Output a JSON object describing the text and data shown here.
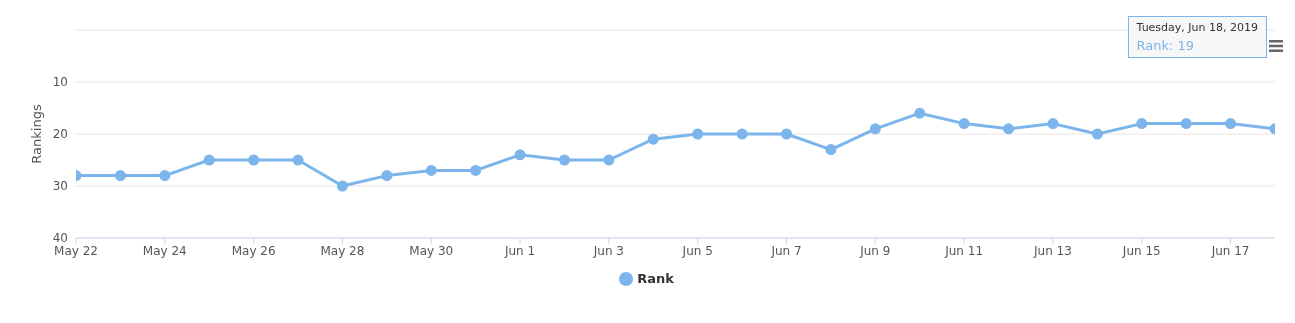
{
  "chart_data": {
    "type": "line",
    "ylabel": "Rankings",
    "x": [
      "2019-05-22",
      "2019-05-23",
      "2019-05-24",
      "2019-05-25",
      "2019-05-26",
      "2019-05-27",
      "2019-05-28",
      "2019-05-29",
      "2019-05-30",
      "2019-05-31",
      "2019-06-01",
      "2019-06-02",
      "2019-06-03",
      "2019-06-04",
      "2019-06-05",
      "2019-06-06",
      "2019-06-07",
      "2019-06-08",
      "2019-06-09",
      "2019-06-10",
      "2019-06-11",
      "2019-06-12",
      "2019-06-13",
      "2019-06-14",
      "2019-06-15",
      "2019-06-16",
      "2019-06-17",
      "2019-06-18"
    ],
    "series": [
      {
        "name": "Rank",
        "color": "#7cb5ec",
        "values": [
          28,
          28,
          28,
          25,
          25,
          25,
          30,
          28,
          27,
          27,
          24,
          25,
          25,
          21,
          20,
          20,
          20,
          23,
          19,
          16,
          18,
          19,
          18,
          20,
          18,
          18,
          18,
          19
        ]
      }
    ],
    "xlim": [
      "2019-05-22",
      "2019-06-18"
    ],
    "xticks": [
      {
        "value": "2019-05-22",
        "label": "May 22"
      },
      {
        "value": "2019-05-24",
        "label": "May 24"
      },
      {
        "value": "2019-05-26",
        "label": "May 26"
      },
      {
        "value": "2019-05-28",
        "label": "May 28"
      },
      {
        "value": "2019-05-30",
        "label": "May 30"
      },
      {
        "value": "2019-06-01",
        "label": "Jun 1"
      },
      {
        "value": "2019-06-03",
        "label": "Jun 3"
      },
      {
        "value": "2019-06-05",
        "label": "Jun 5"
      },
      {
        "value": "2019-06-07",
        "label": "Jun 7"
      },
      {
        "value": "2019-06-09",
        "label": "Jun 9"
      },
      {
        "value": "2019-06-11",
        "label": "Jun 11"
      },
      {
        "value": "2019-06-13",
        "label": "Jun 13"
      },
      {
        "value": "2019-06-15",
        "label": "Jun 15"
      },
      {
        "value": "2019-06-17",
        "label": "Jun 17"
      }
    ],
    "ylim": [
      40,
      0
    ],
    "yticks": [
      10,
      20,
      30,
      40
    ],
    "grid": "y",
    "legend": "bottom",
    "marker": "circle",
    "line_style": "solid",
    "annotations": [
      "Tuesday, Jun 18, 2019",
      "Rank: 19"
    ]
  }
}
